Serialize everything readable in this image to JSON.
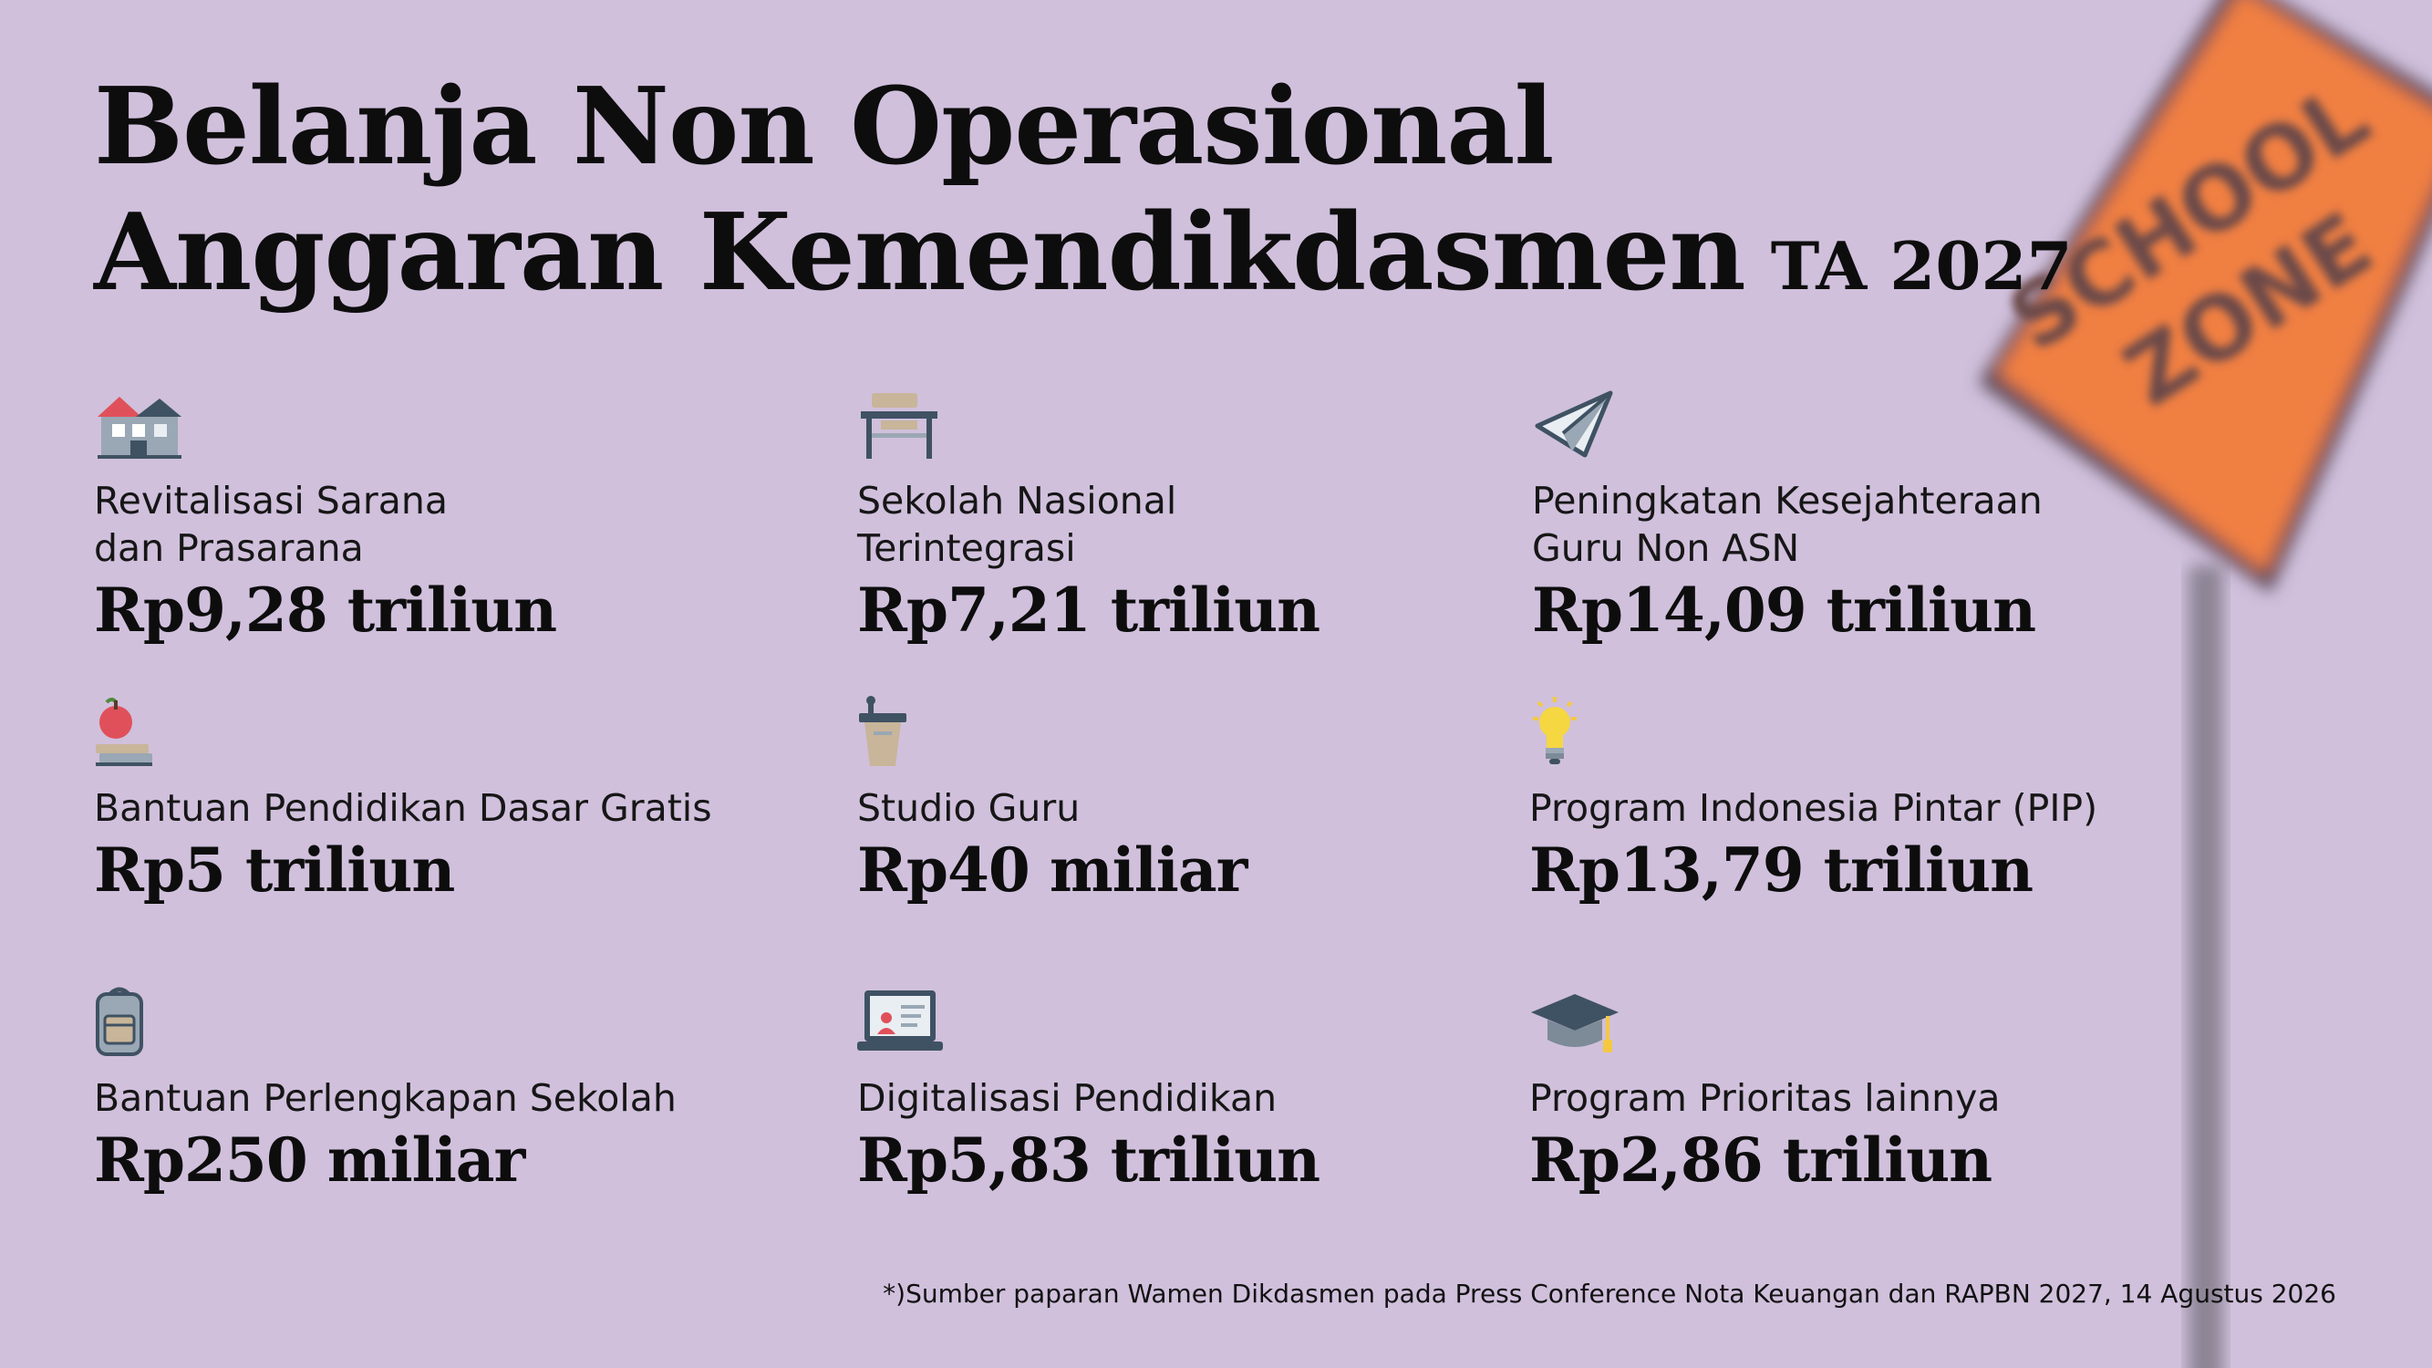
{
  "title": {
    "line1": "Belanja Non Operasional",
    "line2": "Anggaran Kemendikdasmen",
    "year": "TA 2027"
  },
  "sign": {
    "text": "SCHOOL ZONE",
    "line1": "SCHOOL",
    "line2": "ZONE",
    "color": "#f07f42"
  },
  "items": [
    {
      "icon": "school-building-icon",
      "label": "Revitalisasi Sarana\ndan Prasarana",
      "amount": "Rp9,28 triliun"
    },
    {
      "icon": "desk-icon",
      "label": "Sekolah Nasional\nTerintegrasi",
      "amount": "Rp7,21 triliun"
    },
    {
      "icon": "paper-plane-icon",
      "label": "Peningkatan Kesejahteraan\nGuru Non ASN",
      "amount": "Rp14,09 triliun"
    },
    {
      "icon": "apple-on-books-icon",
      "label": "Bantuan Pendidikan Dasar Gratis",
      "amount": "Rp5 triliun"
    },
    {
      "icon": "podium-icon",
      "label": "Studio Guru",
      "amount": "Rp40 miliar"
    },
    {
      "icon": "lightbulb-icon",
      "label": "Program Indonesia Pintar (PIP)",
      "amount": "Rp13,79 triliun"
    },
    {
      "icon": "backpack-icon",
      "label": "Bantuan Perlengkapan Sekolah",
      "amount": "Rp250 miliar"
    },
    {
      "icon": "laptop-icon",
      "label": "Digitalisasi Pendidikan",
      "amount": "Rp5,83 triliun"
    },
    {
      "icon": "graduation-cap-icon",
      "label": "Program Prioritas lainnya",
      "amount": "Rp2,86 triliun"
    }
  ],
  "footnote": "*)Sumber paparan Wamen Dikdasmen pada Press Conference Nota Keuangan dan RAPBN 2027, 14 Agustus 2026"
}
